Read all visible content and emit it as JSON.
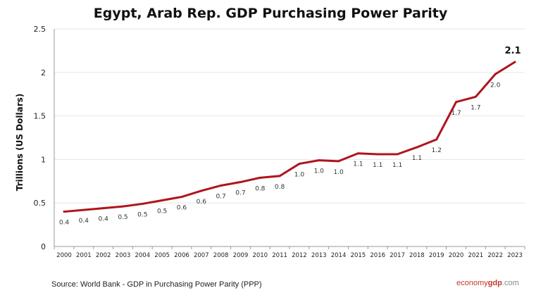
{
  "chart_data": {
    "type": "line",
    "title": "Egypt, Arab Rep. GDP Purchasing Power Parity",
    "ylabel": "Trillions (US Dollars)",
    "xlabel": "",
    "ylim": [
      0,
      2.5
    ],
    "yticks": [
      "0",
      "0.5",
      "1",
      "1.5",
      "2",
      "2.5"
    ],
    "grid": true,
    "legend": "none",
    "line_color": "#b0141c",
    "categories": [
      "2000",
      "2001",
      "2002",
      "2003",
      "2004",
      "2005",
      "2006",
      "2007",
      "2008",
      "2009",
      "2010",
      "2011",
      "2012",
      "2013",
      "2014",
      "2015",
      "2016",
      "2017",
      "2018",
      "2019",
      "2020",
      "2021",
      "2022",
      "2023"
    ],
    "values": [
      0.4,
      0.42,
      0.44,
      0.46,
      0.49,
      0.53,
      0.57,
      0.64,
      0.7,
      0.74,
      0.79,
      0.81,
      0.95,
      0.99,
      0.98,
      1.07,
      1.06,
      1.06,
      1.14,
      1.23,
      1.66,
      1.72,
      1.98,
      2.12
    ],
    "data_labels": [
      "0.4",
      "0.4",
      "0.4",
      "0.5",
      "0.5",
      "0.5",
      "0.6",
      "0.6",
      "0.7",
      "0.7",
      "0.8",
      "0.8",
      "1.0",
      "1.0",
      "1.0",
      "1.1",
      "1.1",
      "1.1",
      "1.1",
      "1.2",
      "1.7",
      "1.7",
      "2.0",
      "2.1"
    ]
  },
  "footer": {
    "source": "Source:  World Bank -  GDP  in Purchasing Power Parity (PPP)",
    "logo_a": "economy",
    "logo_b": "gdp",
    "logo_c": ".com"
  }
}
